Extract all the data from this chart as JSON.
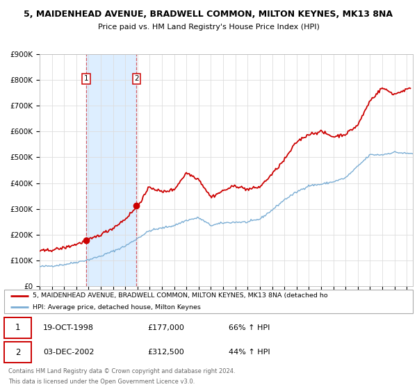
{
  "title": "5, MAIDENHEAD AVENUE, BRADWELL COMMON, MILTON KEYNES, MK13 8NA",
  "subtitle": "Price paid vs. HM Land Registry's House Price Index (HPI)",
  "ylim": [
    0,
    900000
  ],
  "yticks": [
    0,
    100000,
    200000,
    300000,
    400000,
    500000,
    600000,
    700000,
    800000,
    900000
  ],
  "ytick_labels": [
    "£0",
    "£100K",
    "£200K",
    "£300K",
    "£400K",
    "£500K",
    "£600K",
    "£700K",
    "£800K",
    "£900K"
  ],
  "red_color": "#cc0000",
  "blue_color": "#7aadd4",
  "shade_color": "#ddeeff",
  "grid_color": "#dddddd",
  "legend_label_red": "5, MAIDENHEAD AVENUE, BRADWELL COMMON, MILTON KEYNES, MK13 8NA (detached ho",
  "legend_label_blue": "HPI: Average price, detached house, Milton Keynes",
  "sale1_date": "19-OCT-1998",
  "sale1_price": 177000,
  "sale1_hpi": "66% ↑ HPI",
  "sale1_year": 1998.8,
  "sale2_date": "03-DEC-2002",
  "sale2_price": 312500,
  "sale2_hpi": "44% ↑ HPI",
  "sale2_year": 2002.92,
  "footnote1": "Contains HM Land Registry data © Crown copyright and database right 2024.",
  "footnote2": "This data is licensed under the Open Government Licence v3.0.",
  "xmin": 1995,
  "xmax": 2025.5,
  "hpi_anchors_x": [
    1995,
    1996,
    1997,
    1998,
    1999,
    2000,
    2001,
    2002,
    2003,
    2004,
    2005,
    2006,
    2007,
    2008,
    2009,
    2010,
    2011,
    2012,
    2013,
    2014,
    2015,
    2016,
    2017,
    2018,
    2019,
    2020,
    2021,
    2022,
    2023,
    2024,
    2025
  ],
  "hpi_anchors_y": [
    75000,
    78000,
    83000,
    92000,
    102000,
    116000,
    135000,
    155000,
    185000,
    215000,
    225000,
    235000,
    255000,
    265000,
    235000,
    245000,
    248000,
    248000,
    260000,
    295000,
    335000,
    365000,
    390000,
    395000,
    405000,
    420000,
    465000,
    510000,
    510000,
    520000,
    515000
  ],
  "red_anchors_x": [
    1995,
    1996,
    1997,
    1998,
    1999,
    2000,
    2001,
    2002,
    2003,
    2004,
    2005,
    2006,
    2007,
    2008,
    2009,
    2010,
    2011,
    2012,
    2013,
    2014,
    2015,
    2016,
    2017,
    2018,
    2019,
    2020,
    2021,
    2022,
    2023,
    2024,
    2025
  ],
  "red_anchors_y": [
    135000,
    140000,
    148000,
    162000,
    178000,
    200000,
    225000,
    260000,
    310000,
    385000,
    365000,
    375000,
    440000,
    415000,
    345000,
    370000,
    390000,
    375000,
    385000,
    435000,
    490000,
    560000,
    590000,
    600000,
    580000,
    590000,
    625000,
    720000,
    770000,
    745000,
    765000
  ],
  "noise_seed": 42,
  "noise_hpi": 2000,
  "noise_red": 3000
}
